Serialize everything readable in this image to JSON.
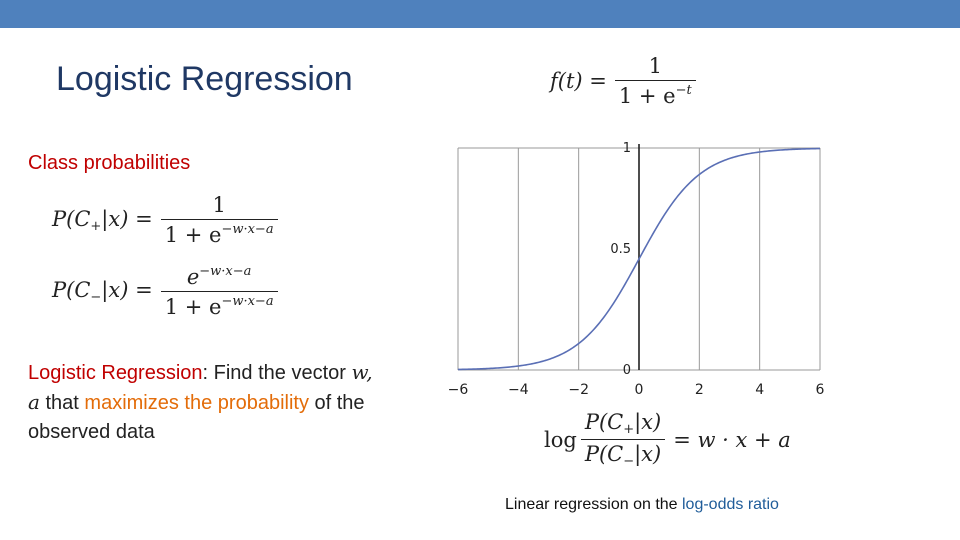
{
  "slide": {
    "title": "Logistic Regression",
    "subtitle": "Class probabilities",
    "accent_color": "#4f81bd"
  },
  "formulas": {
    "sigmoid": {
      "lhs": "f(t) =",
      "num": "1",
      "den": "1 + e",
      "den_exp": "−t"
    },
    "p_plus": {
      "lhs": "P(C",
      "sub": "+",
      "rhs": "|x) =",
      "num": "1",
      "den": "1 + e",
      "den_exp": "−w·x−a"
    },
    "p_minus": {
      "lhs": "P(C",
      "sub": "−",
      "rhs": "|x) =",
      "num_base": "e",
      "num_exp": "−w·x−a",
      "den": "1 + e",
      "den_exp": "−w·x−a"
    },
    "log_odds": {
      "log": "log",
      "num_a": "P(C",
      "num_sub": "+",
      "num_b": "|x)",
      "den_a": "P(C",
      "den_sub": "−",
      "den_b": "|x)",
      "rhs": "= w · x + a"
    }
  },
  "description": {
    "part1": "Logistic Regression",
    "part2": ": Find the vector ",
    "part3": "w, a",
    "part4": " that ",
    "part5": "maximizes the probability",
    "part6": " of the observed data"
  },
  "caption": {
    "text": "Linear regression on the ",
    "highlight": "log-odds ratio"
  },
  "chart_data": {
    "type": "line",
    "function": "sigmoid",
    "x": [
      -6,
      -5,
      -4,
      -3,
      -2,
      -1,
      0,
      1,
      2,
      3,
      4,
      5,
      6
    ],
    "y": [
      0.0025,
      0.0067,
      0.018,
      0.047,
      0.119,
      0.269,
      0.5,
      0.731,
      0.881,
      0.953,
      0.982,
      0.9933,
      0.9975
    ],
    "xlim": [
      -6,
      6
    ],
    "ylim": [
      0,
      1
    ],
    "x_ticks": [
      -6,
      -4,
      -2,
      0,
      2,
      4,
      6
    ],
    "x_tick_labels": [
      "−6",
      "−4",
      "−2",
      "0",
      "2",
      "4",
      "6"
    ],
    "y_ticks": [
      0,
      0.5,
      1
    ],
    "y_tick_labels": [
      "0",
      "0.5",
      "1"
    ],
    "grid": true,
    "line_color": "#5a6fb5"
  }
}
